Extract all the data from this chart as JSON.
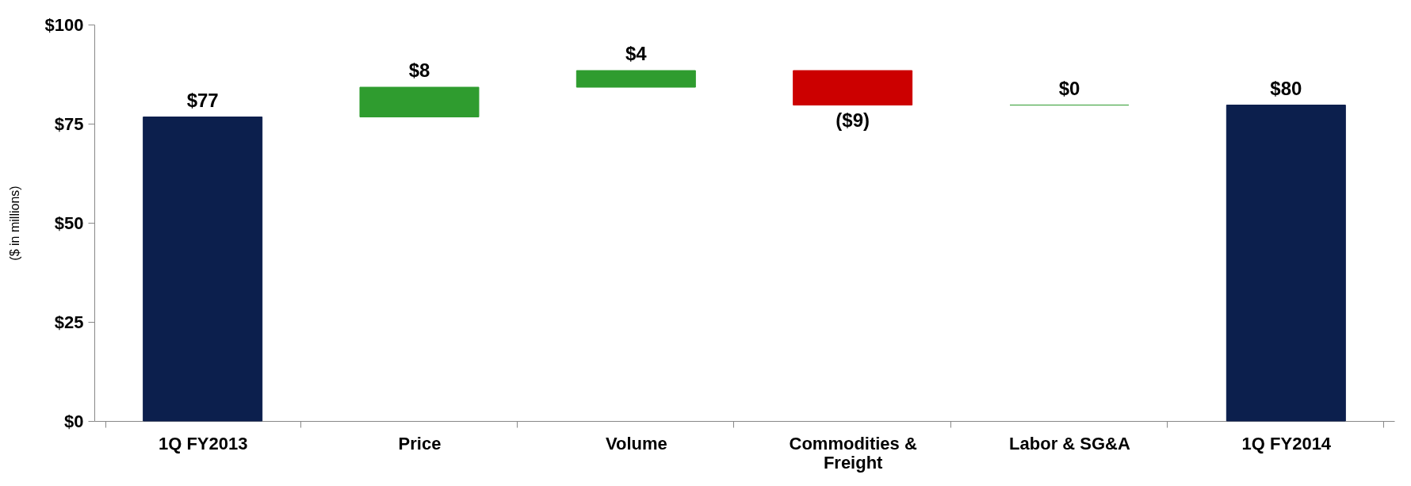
{
  "chart_data": {
    "type": "bar",
    "ylabel": "($ in millions)",
    "categories": [
      "1Q FY2013",
      "Price",
      "Volume",
      "Commodities & Freight",
      "Labor & SG&A",
      "1Q FY2014"
    ],
    "values": [
      76.7,
      7.5,
      4.2,
      -8.7,
      0,
      79.7
    ],
    "base": [
      0,
      76.7,
      84.2,
      88.4,
      79.7,
      0
    ],
    "colors": [
      "#0c1f4d",
      "#2f9c2f",
      "#2f9c2f",
      "#cc0000",
      "#2f9c2f",
      "#0c1f4d"
    ],
    "value_labels": [
      "$77",
      "$8",
      "$4",
      "($9)",
      "$0",
      "$80"
    ],
    "ylim": [
      0,
      100
    ],
    "yticks": [
      {
        "value": 0,
        "label": "$0"
      },
      {
        "value": 25,
        "label": "$25"
      },
      {
        "value": 50,
        "label": "$50"
      },
      {
        "value": 75,
        "label": "$75"
      },
      {
        "value": 100,
        "label": "$100"
      }
    ],
    "grid": false
  }
}
